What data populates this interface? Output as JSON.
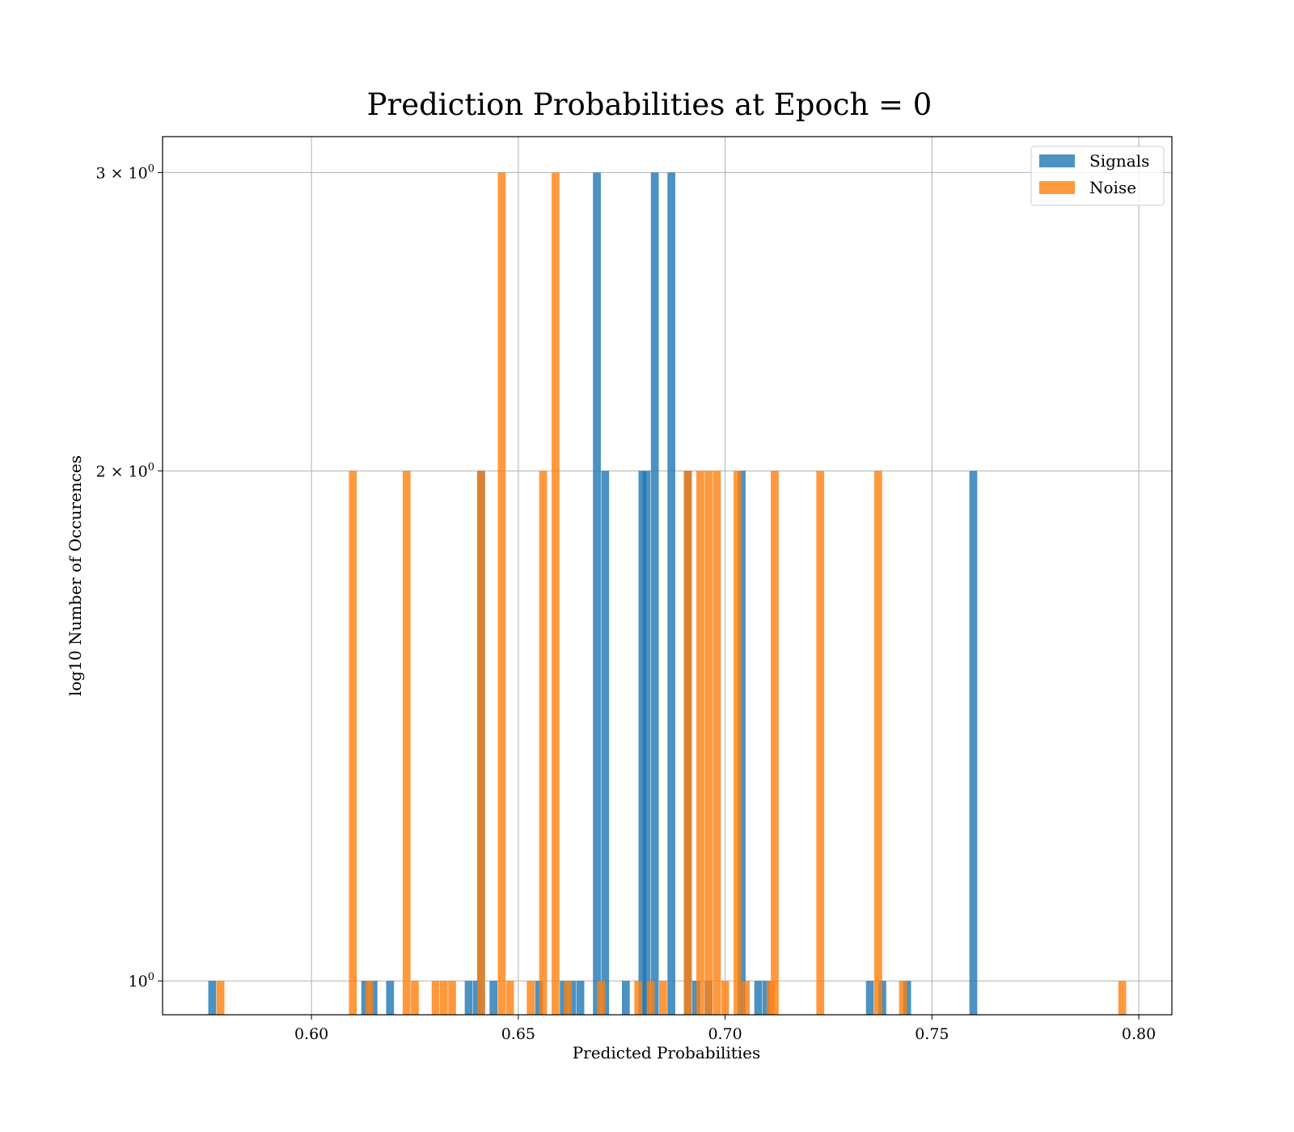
{
  "chart_data": {
    "type": "bar",
    "title": "Prediction Probabilities at Epoch = 0",
    "xlabel": "Predicted Probabilities",
    "ylabel": "log10 Number of Occurences",
    "xlim": [
      0.564,
      0.808
    ],
    "ylim": [
      0.955,
      3.15
    ],
    "y_scale": "log",
    "grid": true,
    "legend_position": "top-right",
    "bin_width": 0.0019,
    "x_ticks": [
      0.6,
      0.65,
      0.7,
      0.75,
      0.8
    ],
    "x_tick_labels": [
      "0.60",
      "0.65",
      "0.70",
      "0.75",
      "0.80"
    ],
    "y_ticks": [
      1,
      2,
      3
    ],
    "y_tick_labels": [
      {
        "base": "10",
        "exp": "0"
      },
      {
        "base": "2 × 10",
        "exp": "0"
      },
      {
        "base": "3 × 10",
        "exp": "0"
      }
    ],
    "series": [
      {
        "name": "Signals",
        "color": "#1f77b4",
        "opacity": 0.8,
        "bins": [
          {
            "x": 0.576,
            "count": 1
          },
          {
            "x": 0.613,
            "count": 1
          },
          {
            "x": 0.615,
            "count": 1
          },
          {
            "x": 0.619,
            "count": 1
          },
          {
            "x": 0.638,
            "count": 1
          },
          {
            "x": 0.64,
            "count": 1
          },
          {
            "x": 0.641,
            "count": 2
          },
          {
            "x": 0.644,
            "count": 1
          },
          {
            "x": 0.655,
            "count": 1
          },
          {
            "x": 0.661,
            "count": 1
          },
          {
            "x": 0.663,
            "count": 1
          },
          {
            "x": 0.665,
            "count": 1
          },
          {
            "x": 0.669,
            "count": 3
          },
          {
            "x": 0.671,
            "count": 2
          },
          {
            "x": 0.676,
            "count": 1
          },
          {
            "x": 0.68,
            "count": 2
          },
          {
            "x": 0.681,
            "count": 2
          },
          {
            "x": 0.683,
            "count": 3
          },
          {
            "x": 0.687,
            "count": 3
          },
          {
            "x": 0.691,
            "count": 2
          },
          {
            "x": 0.693,
            "count": 1
          },
          {
            "x": 0.696,
            "count": 1
          },
          {
            "x": 0.704,
            "count": 2
          },
          {
            "x": 0.708,
            "count": 1
          },
          {
            "x": 0.71,
            "count": 1
          },
          {
            "x": 0.735,
            "count": 1
          },
          {
            "x": 0.738,
            "count": 1
          },
          {
            "x": 0.744,
            "count": 1
          },
          {
            "x": 0.76,
            "count": 2
          }
        ]
      },
      {
        "name": "Noise",
        "color": "#ff7f0e",
        "opacity": 0.8,
        "bins": [
          {
            "x": 0.578,
            "count": 1
          },
          {
            "x": 0.61,
            "count": 2
          },
          {
            "x": 0.614,
            "count": 1
          },
          {
            "x": 0.623,
            "count": 2
          },
          {
            "x": 0.625,
            "count": 1
          },
          {
            "x": 0.63,
            "count": 1
          },
          {
            "x": 0.632,
            "count": 1
          },
          {
            "x": 0.634,
            "count": 1
          },
          {
            "x": 0.641,
            "count": 2
          },
          {
            "x": 0.646,
            "count": 3
          },
          {
            "x": 0.648,
            "count": 1
          },
          {
            "x": 0.653,
            "count": 1
          },
          {
            "x": 0.656,
            "count": 2
          },
          {
            "x": 0.659,
            "count": 3
          },
          {
            "x": 0.662,
            "count": 1
          },
          {
            "x": 0.67,
            "count": 1
          },
          {
            "x": 0.679,
            "count": 1
          },
          {
            "x": 0.682,
            "count": 1
          },
          {
            "x": 0.685,
            "count": 1
          },
          {
            "x": 0.691,
            "count": 2
          },
          {
            "x": 0.694,
            "count": 2
          },
          {
            "x": 0.696,
            "count": 2
          },
          {
            "x": 0.698,
            "count": 2
          },
          {
            "x": 0.7,
            "count": 1
          },
          {
            "x": 0.703,
            "count": 2
          },
          {
            "x": 0.705,
            "count": 1
          },
          {
            "x": 0.711,
            "count": 1
          },
          {
            "x": 0.712,
            "count": 2
          },
          {
            "x": 0.723,
            "count": 2
          },
          {
            "x": 0.737,
            "count": 2
          },
          {
            "x": 0.743,
            "count": 1
          },
          {
            "x": 0.796,
            "count": 1
          }
        ]
      }
    ]
  }
}
